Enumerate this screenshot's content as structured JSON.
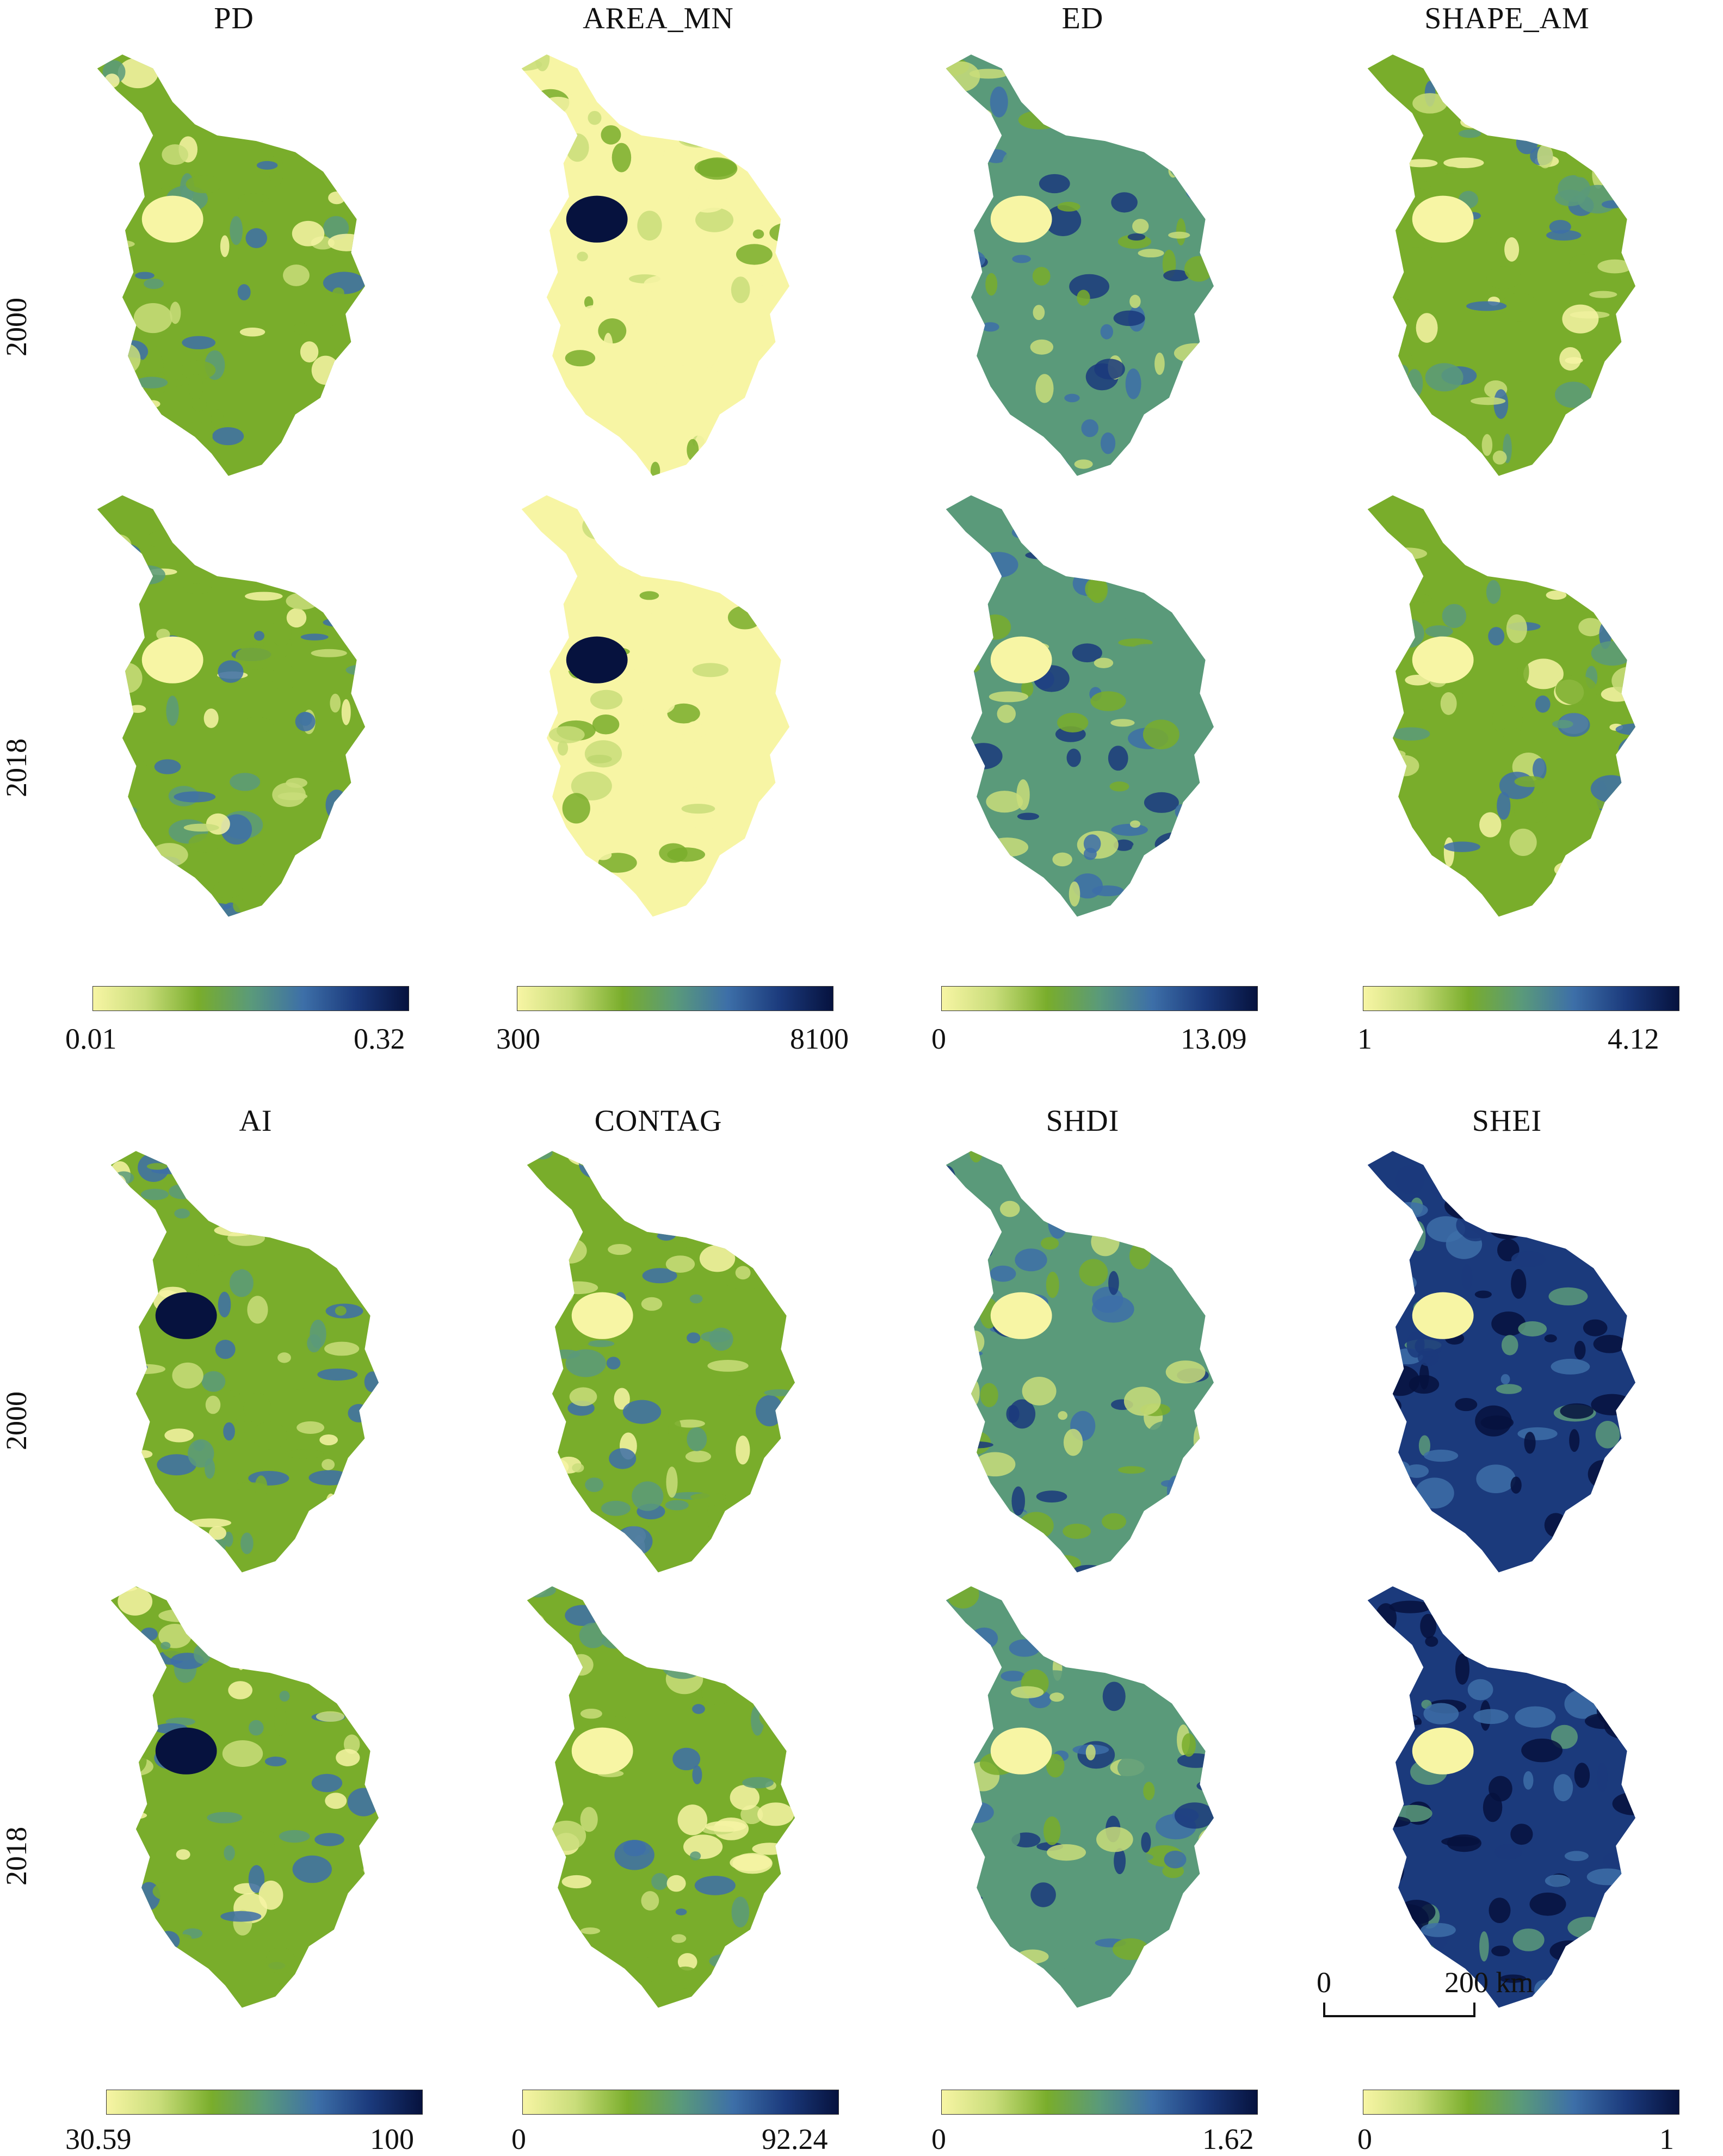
{
  "palette": [
    "#f7f5a4",
    "#c9dd7a",
    "#79ad2b",
    "#5a9a7a",
    "#3d6fa8",
    "#1b3a7c",
    "#06123e"
  ],
  "years": [
    "2000",
    "2018"
  ],
  "panels_top": [
    {
      "metric": "PD",
      "min": "0.01",
      "max": "0.32"
    },
    {
      "metric": "AREA_MN",
      "min": "300",
      "max": "8100"
    },
    {
      "metric": "ED",
      "min": "0",
      "max": "13.09"
    },
    {
      "metric": "SHAPE_AM",
      "min": "1",
      "max": "4.12"
    }
  ],
  "panels_bottom": [
    {
      "metric": "AI",
      "min": "30.59",
      "max": "100"
    },
    {
      "metric": "CONTAG",
      "min": "0",
      "max": "92.24"
    },
    {
      "metric": "SHDI",
      "min": "0",
      "max": "1.62"
    },
    {
      "metric": "SHEI",
      "min": "0",
      "max": "1"
    }
  ],
  "scalebar": {
    "zero": "0",
    "distance": "200 km"
  }
}
